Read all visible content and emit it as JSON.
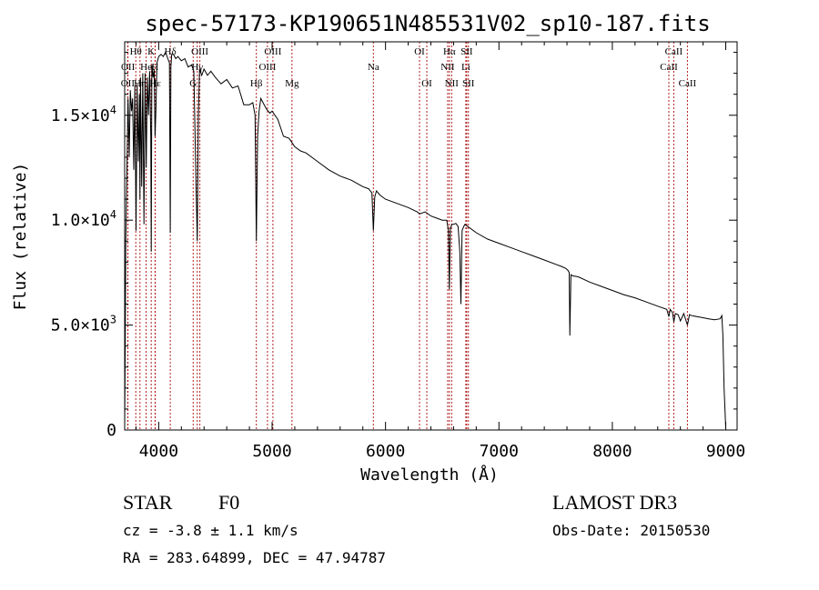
{
  "chart_data": {
    "type": "line",
    "title": "spec-57173-KP190651N485531V02_sp10-187.fits",
    "xlabel": "Wavelength (Å)",
    "ylabel": "Flux (relative)",
    "xlim": [
      3700,
      9100
    ],
    "ylim": [
      0,
      18500
    ],
    "x_ticks": [
      4000,
      5000,
      6000,
      7000,
      8000,
      9000
    ],
    "x_tick_labels": [
      "4000",
      "5000",
      "6000",
      "7000",
      "8000",
      "9000"
    ],
    "y_ticks": [
      0,
      5000,
      10000,
      15000
    ],
    "y_tick_labels": [
      {
        "mantissa": "0",
        "exponent": ""
      },
      {
        "mantissa": "5.0×10",
        "exponent": "3"
      },
      {
        "mantissa": "1.0×10",
        "exponent": "4"
      },
      {
        "mantissa": "1.5×10",
        "exponent": "4"
      }
    ],
    "series": [
      {
        "name": "spectrum",
        "x": [
          3700,
          3705,
          3710,
          3720,
          3730,
          3740,
          3750,
          3760,
          3770,
          3780,
          3790,
          3800,
          3810,
          3820,
          3830,
          3835,
          3840,
          3850,
          3860,
          3870,
          3880,
          3890,
          3900,
          3910,
          3920,
          3930,
          3934,
          3940,
          3950,
          3960,
          3968,
          3975,
          3985,
          4000,
          4020,
          4040,
          4060,
          4080,
          4095,
          4102,
          4108,
          4115,
          4130,
          4150,
          4170,
          4200,
          4230,
          4260,
          4290,
          4310,
          4330,
          4340,
          4350,
          4360,
          4380,
          4400,
          4430,
          4460,
          4500,
          4550,
          4600,
          4650,
          4700,
          4750,
          4800,
          4830,
          4850,
          4861,
          4872,
          4885,
          4900,
          4920,
          4950,
          4980,
          5000,
          5050,
          5100,
          5150,
          5200,
          5250,
          5300,
          5400,
          5500,
          5600,
          5700,
          5800,
          5850,
          5880,
          5893,
          5905,
          5920,
          5950,
          6000,
          6100,
          6200,
          6280,
          6300,
          6350,
          6400,
          6450,
          6500,
          6540,
          6555,
          6563,
          6572,
          6585,
          6600,
          6620,
          6640,
          6655,
          6665,
          6675,
          6690,
          6700,
          6800,
          6900,
          7000,
          7100,
          7200,
          7300,
          7400,
          7500,
          7550,
          7590,
          7610,
          7620,
          7625,
          7635,
          7650,
          7700,
          7800,
          7900,
          8000,
          8100,
          8200,
          8300,
          8400,
          8480,
          8498,
          8510,
          8530,
          8542,
          8555,
          8580,
          8600,
          8630,
          8662,
          8680,
          8700,
          8750,
          8800,
          8850,
          8900,
          8950,
          8965,
          8975,
          8985,
          9000
        ],
        "y": [
          200,
          4000,
          9000,
          12500,
          15800,
          13000,
          16200,
          15200,
          15800,
          12400,
          16400,
          9500,
          16500,
          12800,
          16000,
          11000,
          16800,
          11600,
          17000,
          9800,
          17000,
          12500,
          16800,
          15000,
          17100,
          14000,
          8500,
          17400,
          16800,
          17200,
          14000,
          15200,
          17500,
          17800,
          17900,
          17800,
          18000,
          17700,
          17500,
          9400,
          17300,
          17900,
          17900,
          17700,
          17800,
          17600,
          17700,
          17300,
          17400,
          17100,
          11500,
          9000,
          15000,
          17200,
          16900,
          17200,
          16900,
          17100,
          16800,
          16500,
          16700,
          16300,
          16400,
          15500,
          15500,
          15600,
          15000,
          9000,
          14000,
          15200,
          15800,
          15600,
          15300,
          15100,
          15200,
          14800,
          14000,
          13900,
          13500,
          13300,
          13200,
          12800,
          12400,
          12100,
          11900,
          11600,
          11500,
          11300,
          9500,
          11100,
          11400,
          11200,
          11000,
          10800,
          10600,
          10400,
          10300,
          10400,
          10200,
          10100,
          10000,
          10000,
          9500,
          6700,
          9600,
          9800,
          9800,
          9850,
          9700,
          8500,
          6000,
          9500,
          9700,
          9800,
          9400,
          9100,
          8900,
          8700,
          8500,
          8300,
          8100,
          7900,
          7800,
          7700,
          7600,
          7500,
          4500,
          7400,
          7350,
          7300,
          7050,
          6850,
          6650,
          6450,
          6300,
          6100,
          5900,
          5750,
          5400,
          5750,
          5600,
          5150,
          5550,
          5500,
          5200,
          5550,
          5000,
          5500,
          5450,
          5400,
          5350,
          5300,
          5250,
          5300,
          5450,
          4500,
          2000,
          100
        ]
      }
    ],
    "line_color": "#000000",
    "marker_color": "#b22222",
    "line_markers": [
      {
        "label": "OII",
        "wavelength": 3727,
        "row": 2
      },
      {
        "label": "OII",
        "wavelength": 3729,
        "row": 1
      },
      {
        "label": "Hθ",
        "wavelength": 3798,
        "row": 0
      },
      {
        "label": "Hη",
        "wavelength": 3835,
        "row": 2
      },
      {
        "label": "He",
        "wavelength": 3889,
        "row": 1
      },
      {
        "label": "K",
        "wavelength": 3934,
        "row": 0
      },
      {
        "label": "H",
        "wavelength": 3968,
        "row": 1
      },
      {
        "label": "Hε",
        "wavelength": 3970,
        "row": 2
      },
      {
        "label": "Hδ",
        "wavelength": 4102,
        "row": 0
      },
      {
        "label": "G",
        "wavelength": 4304,
        "row": 2
      },
      {
        "label": "Hγ",
        "wavelength": 4340,
        "row": 1
      },
      {
        "label": "OIII",
        "wavelength": 4363,
        "row": 0
      },
      {
        "label": "Hβ",
        "wavelength": 4861,
        "row": 2
      },
      {
        "label": "OIII",
        "wavelength": 4959,
        "row": 1
      },
      {
        "label": "OIII",
        "wavelength": 5007,
        "row": 0
      },
      {
        "label": "Mg",
        "wavelength": 5175,
        "row": 2
      },
      {
        "label": "Na",
        "wavelength": 5893,
        "row": 1
      },
      {
        "label": "OI",
        "wavelength": 6300,
        "row": 0
      },
      {
        "label": "OI",
        "wavelength": 6364,
        "row": 2
      },
      {
        "label": "NII",
        "wavelength": 6548,
        "row": 1
      },
      {
        "label": "Hα",
        "wavelength": 6563,
        "row": 0
      },
      {
        "label": "NII",
        "wavelength": 6583,
        "row": 2
      },
      {
        "label": "Li",
        "wavelength": 6708,
        "row": 1
      },
      {
        "label": "SII",
        "wavelength": 6716,
        "row": 0
      },
      {
        "label": "SII",
        "wavelength": 6731,
        "row": 2
      },
      {
        "label": "CaII",
        "wavelength": 8498,
        "row": 1
      },
      {
        "label": "CaII",
        "wavelength": 8542,
        "row": 0
      },
      {
        "label": "CaII",
        "wavelength": 8662,
        "row": 2
      }
    ]
  },
  "info": {
    "object_class": "STAR",
    "subclass": "F0",
    "survey": "LAMOST DR3",
    "redshift": "cz = -3.8 ± 1.1 km/s",
    "obs_date": "Obs-Date: 20150530",
    "coords": "RA = 283.64899, DEC =  47.94787"
  }
}
